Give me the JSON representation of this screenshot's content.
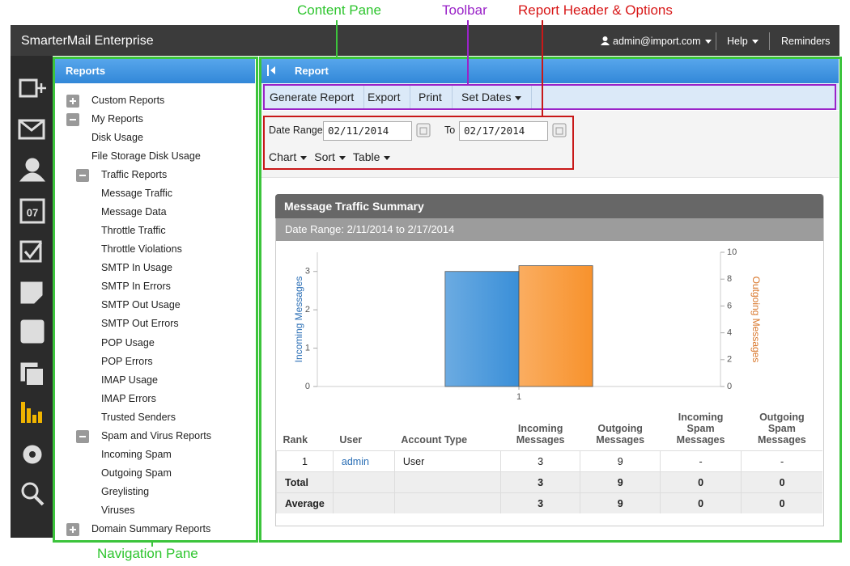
{
  "annotations": {
    "content_pane": "Content Pane",
    "toolbar": "Toolbar",
    "report_header": "Report Header & Options",
    "navigation_pane": "Navigation Pane"
  },
  "topbar": {
    "title": "SmarterMail Enterprise",
    "user": "admin@import.com",
    "help": "Help",
    "reminders": "Reminders"
  },
  "sidebar": {
    "calendar_day": "07"
  },
  "navigation": {
    "title": "Reports",
    "items": [
      {
        "label": "Custom Reports",
        "expanded": false
      },
      {
        "label": "My Reports",
        "expanded": true,
        "children": [
          {
            "label": "Disk Usage"
          },
          {
            "label": "File Storage Disk Usage"
          },
          {
            "label": "Traffic Reports",
            "expanded": true,
            "children": [
              {
                "label": "Message Traffic"
              },
              {
                "label": "Message Data"
              },
              {
                "label": "Throttle Traffic"
              },
              {
                "label": "Throttle Violations"
              },
              {
                "label": "SMTP In Usage"
              },
              {
                "label": "SMTP In Errors"
              },
              {
                "label": "SMTP Out Usage"
              },
              {
                "label": "SMTP Out Errors"
              },
              {
                "label": "POP Usage"
              },
              {
                "label": "POP Errors"
              },
              {
                "label": "IMAP Usage"
              },
              {
                "label": "IMAP Errors"
              },
              {
                "label": "Trusted Senders"
              }
            ]
          },
          {
            "label": "Spam and Virus Reports",
            "expanded": true,
            "children": [
              {
                "label": "Incoming Spam"
              },
              {
                "label": "Outgoing Spam"
              },
              {
                "label": "Greylisting"
              },
              {
                "label": "Viruses"
              }
            ]
          }
        ]
      },
      {
        "label": "Domain Summary Reports",
        "expanded": false
      }
    ]
  },
  "report": {
    "title": "Report",
    "toolbar": [
      "Generate Report",
      "Export",
      "Print",
      "Set Dates"
    ],
    "options": {
      "date_range_label": "Date Range",
      "start_date": "02/11/2014",
      "to_label": "To",
      "end_date": "02/17/2014",
      "menus": [
        "Chart",
        "Sort",
        "Table"
      ]
    },
    "card": {
      "title": "Message Traffic Summary",
      "subtitle": "Date Range: 2/11/2014 to 2/17/2014",
      "chart": {
        "type": "bar",
        "categories": [
          "1"
        ],
        "series": [
          {
            "name": "Incoming Messages",
            "color": "#3a8fd8",
            "values": [
              3
            ]
          },
          {
            "name": "Outgoing Messages",
            "color": "#f8922c",
            "values": [
              9
            ],
            "axis": "y2"
          }
        ],
        "ylim": [
          0,
          3.5
        ],
        "yticks": [
          0,
          1,
          2,
          3
        ],
        "y2lim": [
          0,
          10
        ],
        "y2ticks": [
          0,
          2,
          4,
          6,
          8,
          10
        ]
      },
      "table": {
        "columns": [
          "Rank",
          "User",
          "Account Type",
          "Incoming Messages",
          "Outgoing Messages",
          "Incoming Spam Messages",
          "Outgoing Spam Messages"
        ],
        "rows": [
          [
            1,
            "admin",
            "User",
            3,
            9,
            "-",
            "-"
          ]
        ],
        "totals": [
          [
            "Total",
            null,
            null,
            3,
            9,
            0,
            0
          ],
          [
            "Average",
            null,
            null,
            3,
            9,
            0,
            0
          ]
        ]
      }
    }
  }
}
